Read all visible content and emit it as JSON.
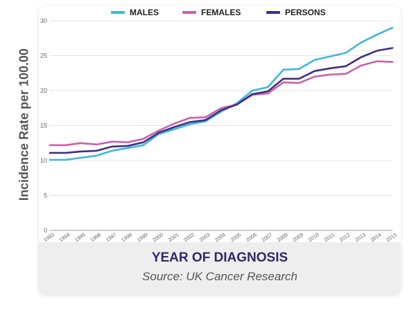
{
  "chart_data": {
    "type": "line",
    "title": "",
    "xlabel": "YEAR OF DIAGNOSIS",
    "ylabel": "Incidence Rate per 100.00",
    "source": "Source: UK Cancer Research",
    "x": [
      "1993",
      "1994",
      "1995",
      "1996",
      "1997",
      "1998",
      "1999",
      "2000",
      "2001",
      "2002",
      "2003",
      "2004",
      "2005",
      "2006",
      "2007",
      "2008",
      "2009",
      "2010",
      "2011",
      "2012",
      "2013",
      "2014",
      "2015"
    ],
    "ylim": [
      0,
      30
    ],
    "yticks": [
      "0",
      "5",
      "10",
      "15",
      "20",
      "25",
      "30"
    ],
    "grid": true,
    "legend_position": "top",
    "series": [
      {
        "name": "MALES",
        "color": "#3cb7d9",
        "values": [
          10.1,
          10.1,
          10.4,
          10.7,
          11.4,
          11.8,
          12.2,
          13.8,
          14.5,
          15.2,
          15.6,
          17.0,
          18.2,
          20.0,
          20.5,
          23.0,
          23.1,
          24.4,
          24.9,
          25.4,
          26.9,
          28.0,
          29.0
        ]
      },
      {
        "name": "FEMALES",
        "color": "#cc5fa8",
        "values": [
          12.2,
          12.2,
          12.5,
          12.3,
          12.7,
          12.6,
          13.1,
          14.3,
          15.3,
          16.1,
          16.2,
          17.5,
          18.0,
          19.4,
          19.6,
          21.2,
          21.1,
          22.0,
          22.3,
          22.4,
          23.6,
          24.2,
          24.1
        ]
      },
      {
        "name": "PERSONS",
        "color": "#3e2e83",
        "values": [
          11.1,
          11.1,
          11.3,
          11.4,
          12.0,
          12.1,
          12.6,
          14.0,
          14.8,
          15.5,
          15.8,
          17.2,
          18.0,
          19.5,
          19.9,
          21.7,
          21.7,
          22.8,
          23.2,
          23.5,
          24.8,
          25.7,
          26.1
        ]
      }
    ]
  }
}
